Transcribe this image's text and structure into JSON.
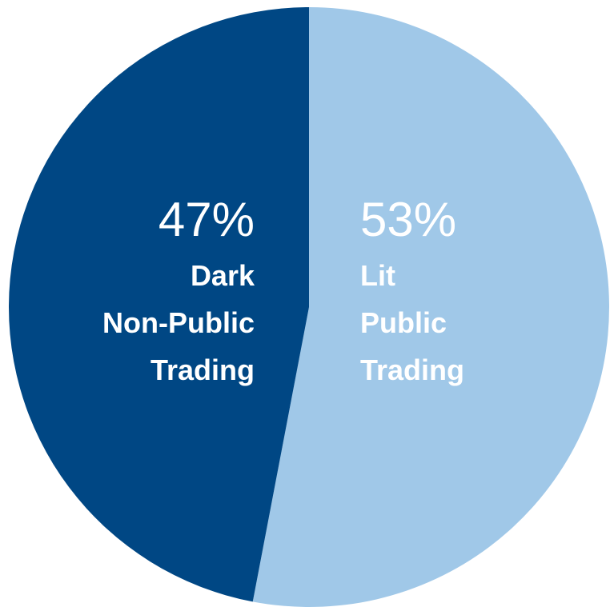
{
  "chart_data": {
    "type": "pie",
    "categories": [
      "Dark Non-Public Trading",
      "Lit Public Trading"
    ],
    "values": [
      47,
      53
    ],
    "value_labels": [
      "47%",
      "53%"
    ],
    "colors": [
      "#004784",
      "#a0c8e8"
    ]
  }
}
